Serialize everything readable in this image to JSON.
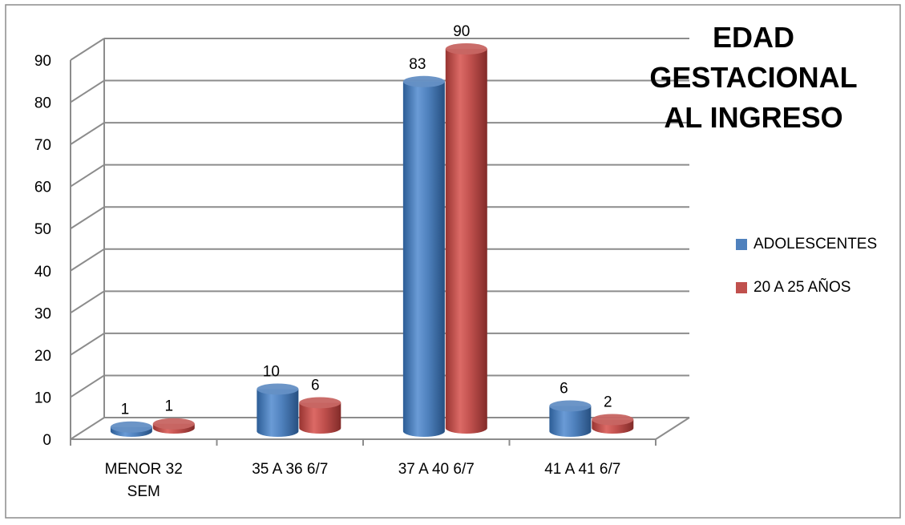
{
  "chart_data": {
    "type": "bar",
    "title_lines": [
      "EDAD GESTACIONAL",
      "AL INGRESO"
    ],
    "categories": [
      [
        "MENOR 32",
        "SEM"
      ],
      [
        "35 A 36 6/7"
      ],
      [
        "37 A 40 6/7"
      ],
      [
        "41 A 41 6/7"
      ]
    ],
    "series": [
      {
        "name": "ADOLESCENTES",
        "values": [
          1,
          10,
          83,
          6
        ],
        "color": "#4F81BD"
      },
      {
        "name": "20 A 25 AÑOS",
        "values": [
          1,
          6,
          90,
          2
        ],
        "color": "#C0504D"
      }
    ],
    "y_ticks": [
      "0",
      "10",
      "20",
      "30",
      "40",
      "50",
      "60",
      "70",
      "80",
      "90"
    ],
    "ylim": [
      0,
      90
    ],
    "grid": true,
    "legend_position": "right"
  }
}
